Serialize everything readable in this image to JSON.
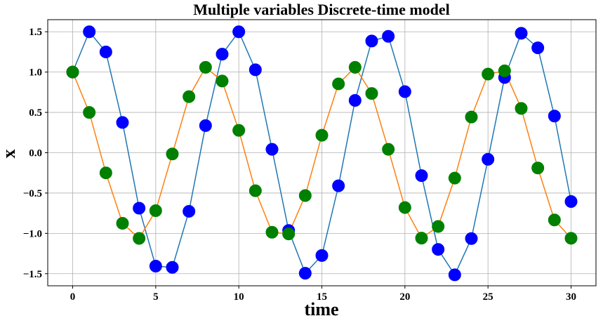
{
  "chart_data": {
    "type": "line",
    "title": "Multiple variables Discrete-time model",
    "xlabel": "time",
    "ylabel": "x",
    "xlim": [
      -1.5,
      31.5
    ],
    "ylim": [
      -1.65,
      1.65
    ],
    "grid": true,
    "xticks": [
      0,
      5,
      10,
      15,
      20,
      25,
      30
    ],
    "xtick_labels": [
      "0",
      "5",
      "10",
      "15",
      "20",
      "25",
      "30"
    ],
    "yticks": [
      -1.5,
      -1.0,
      -0.5,
      0.0,
      0.5,
      1.0,
      1.5
    ],
    "ytick_labels": [
      "−1.5",
      "−1.0",
      "−0.5",
      "0.0",
      "0.5",
      "1.0",
      "1.5"
    ],
    "x": [
      0,
      1,
      2,
      3,
      4,
      5,
      6,
      7,
      8,
      9,
      10,
      11,
      12,
      13,
      14,
      15,
      16,
      17,
      18,
      19,
      20,
      21,
      22,
      23,
      24,
      25,
      26,
      27,
      28,
      29,
      30
    ],
    "series": [
      {
        "line_color": "#1f77b4",
        "marker_color": "#0000ff",
        "values": [
          1.0,
          1.5,
          1.25,
          0.375,
          -0.6875,
          -1.40625,
          -1.421875,
          -0.7265625,
          0.3359375,
          1.2226563,
          1.5,
          1.0283203,
          0.0419922,
          -0.9641113,
          -1.4946289,
          -1.274353,
          -0.4104614,
          0.6482544,
          1.3857422,
          1.4434814,
          0.7579651,
          -0.2844696,
          -1.1989136,
          -1.5138397,
          -1.064167,
          -0.0819588,
          0.9325504,
          1.4809036,
          1.3010273,
          0.4547238,
          -0.6048784
        ]
      },
      {
        "line_color": "#ff7f0e",
        "marker_color": "#008000",
        "values": [
          1.0,
          0.5,
          -0.25,
          -0.875,
          -1.0625,
          -0.71875,
          -0.015625,
          0.6953125,
          1.0585938,
          0.8886719,
          0.2773438,
          -0.4716797,
          -0.9858398,
          -1.0068359,
          -0.5307617,
          0.2165527,
          0.8537598,
          1.059021,
          0.7348633,
          0.0419922,
          -0.6797485,
          -1.0587158,
          -0.9145507,
          -0.314148,
          0.4428558,
          0.9749203,
          1.0159,
          0.54964,
          -0.1895075,
          -0.8333648,
          -1.0607275
        ]
      }
    ]
  }
}
